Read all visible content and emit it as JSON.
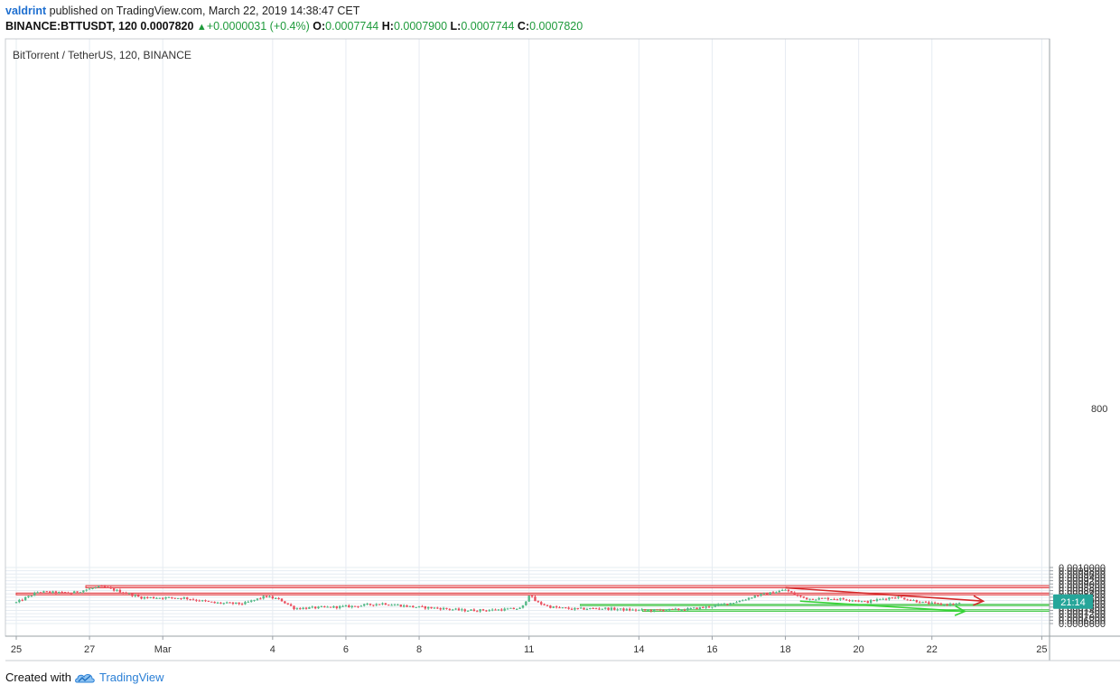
{
  "header": {
    "user": "valdrint",
    "published_text": "published on TradingView.com, March 22, 2019 14:38:47 CET",
    "symbol_line": {
      "symbol": "BINANCE:BTTUSDT, 120",
      "price": "0.0007820",
      "change": "+0.0000031 (+0.4%)",
      "o_label": "O:",
      "o": "0.0007744",
      "h_label": "H:",
      "h": "0.0007900",
      "l_label": "L:",
      "l": "0.0007744",
      "c_label": "C:",
      "c": "0.0007820"
    }
  },
  "chart_data": {
    "type": "candlestick",
    "title": "BitTorrent / TetherUS, 120, BINANCE",
    "xlabel": "",
    "ylabel": "",
    "ylim": [
      0.00065,
      0.001
    ],
    "y_ticks": [
      "0.0010000",
      "0.0009800",
      "0.0009600",
      "0.0009400",
      "0.0009200",
      "0.0009000",
      "0.0008800",
      "0.0008600",
      "0.0008400",
      "0.0008200",
      "0.0008000",
      "0.0007800",
      "0.0007600",
      "0.0007400",
      "0.0007200",
      "0.0007000",
      "0.0006800",
      "0.0006600"
    ],
    "x_range_days": [
      0,
      28
    ],
    "x_ticks": [
      {
        "label": "25",
        "day": 0
      },
      {
        "label": "27",
        "day": 2
      },
      {
        "label": "Mar",
        "day": 4
      },
      {
        "label": "4",
        "day": 7
      },
      {
        "label": "6",
        "day": 9
      },
      {
        "label": "8",
        "day": 11
      },
      {
        "label": "11",
        "day": 14
      },
      {
        "label": "14",
        "day": 17
      },
      {
        "label": "16",
        "day": 19
      },
      {
        "label": "18",
        "day": 21
      },
      {
        "label": "20",
        "day": 23
      },
      {
        "label": "22",
        "day": 25
      },
      {
        "label": "25",
        "day": 28
      }
    ],
    "grid": true,
    "price_label": "21:14",
    "price_label_value": 0.000782,
    "key_points": [
      {
        "day": 0.0,
        "price": 0.000788
      },
      {
        "day": 0.6,
        "price": 0.000852
      },
      {
        "day": 1.5,
        "price": 0.000845
      },
      {
        "day": 2.3,
        "price": 0.000885
      },
      {
        "day": 3.0,
        "price": 0.000845
      },
      {
        "day": 3.4,
        "price": 0.000818
      },
      {
        "day": 4.6,
        "price": 0.000815
      },
      {
        "day": 5.4,
        "price": 0.000785
      },
      {
        "day": 6.2,
        "price": 0.00078
      },
      {
        "day": 6.8,
        "price": 0.000825
      },
      {
        "day": 7.2,
        "price": 0.000805
      },
      {
        "day": 7.6,
        "price": 0.000752
      },
      {
        "day": 8.4,
        "price": 0.000758
      },
      {
        "day": 9.2,
        "price": 0.000765
      },
      {
        "day": 10.0,
        "price": 0.000782
      },
      {
        "day": 10.8,
        "price": 0.000762
      },
      {
        "day": 11.6,
        "price": 0.000752
      },
      {
        "day": 12.2,
        "price": 0.00074
      },
      {
        "day": 13.0,
        "price": 0.000742
      },
      {
        "day": 13.8,
        "price": 0.000752
      },
      {
        "day": 14.0,
        "price": 0.000835
      },
      {
        "day": 14.2,
        "price": 0.00079
      },
      {
        "day": 14.6,
        "price": 0.00076
      },
      {
        "day": 15.2,
        "price": 0.000748
      },
      {
        "day": 16.0,
        "price": 0.000752
      },
      {
        "day": 16.8,
        "price": 0.000742
      },
      {
        "day": 17.4,
        "price": 0.00074
      },
      {
        "day": 18.2,
        "price": 0.000745
      },
      {
        "day": 18.8,
        "price": 0.000758
      },
      {
        "day": 19.4,
        "price": 0.00078
      },
      {
        "day": 19.8,
        "price": 0.0008
      },
      {
        "day": 20.2,
        "price": 0.00083
      },
      {
        "day": 20.6,
        "price": 0.000845
      },
      {
        "day": 21.0,
        "price": 0.000865
      },
      {
        "day": 21.3,
        "price": 0.00083
      },
      {
        "day": 21.6,
        "price": 0.00081
      },
      {
        "day": 22.2,
        "price": 0.000812
      },
      {
        "day": 22.8,
        "price": 0.000805
      },
      {
        "day": 23.2,
        "price": 0.00079
      },
      {
        "day": 23.6,
        "price": 0.000808
      },
      {
        "day": 24.0,
        "price": 0.000822
      },
      {
        "day": 24.4,
        "price": 0.000805
      },
      {
        "day": 24.8,
        "price": 0.000785
      },
      {
        "day": 25.3,
        "price": 0.000775
      },
      {
        "day": 25.6,
        "price": 0.000778
      },
      {
        "day": 25.8,
        "price": 0.000782
      }
    ],
    "annotations": [
      {
        "type": "zone",
        "color": "red",
        "from_day": 1.9,
        "price_low": 0.000877,
        "price_high": 0.00089
      },
      {
        "type": "zone",
        "color": "red",
        "from_day": 0,
        "price_low": 0.000834,
        "price_high": 0.000845
      },
      {
        "type": "zone",
        "color": "green",
        "from_day": 15.4,
        "price_low": 0.000769,
        "price_high": 0.000776
      },
      {
        "type": "zone",
        "color": "green",
        "from_day": 17.1,
        "price_low": 0.000734,
        "price_high": 0.000744
      },
      {
        "type": "arrow",
        "color": "red",
        "from": {
          "day": 21.0,
          "price": 0.000877
        },
        "to": {
          "day": 26.4,
          "price": 0.000796
        }
      },
      {
        "type": "arrow",
        "color": "green",
        "from": {
          "day": 21.4,
          "price": 0.000796
        },
        "to": {
          "day": 25.9,
          "price": 0.000734
        }
      }
    ]
  },
  "colors": {
    "up_candle": "#53b987",
    "down_candle": "#eb4d5c",
    "grid": "#e6ecf2",
    "red_zone_fill": "#f9c7c9",
    "red_zone_stroke": "#e03a3e",
    "green_zone_fill": "#c5f2c6",
    "green_zone_stroke": "#46c84a",
    "red_arrow": "#d42a2a",
    "green_arrow": "#35d335",
    "price_label_bg": "#26a69a"
  },
  "footer": {
    "created_with": "Created with",
    "brand": "TradingView",
    "logo_icon": "tradingview-cloud-icon"
  }
}
